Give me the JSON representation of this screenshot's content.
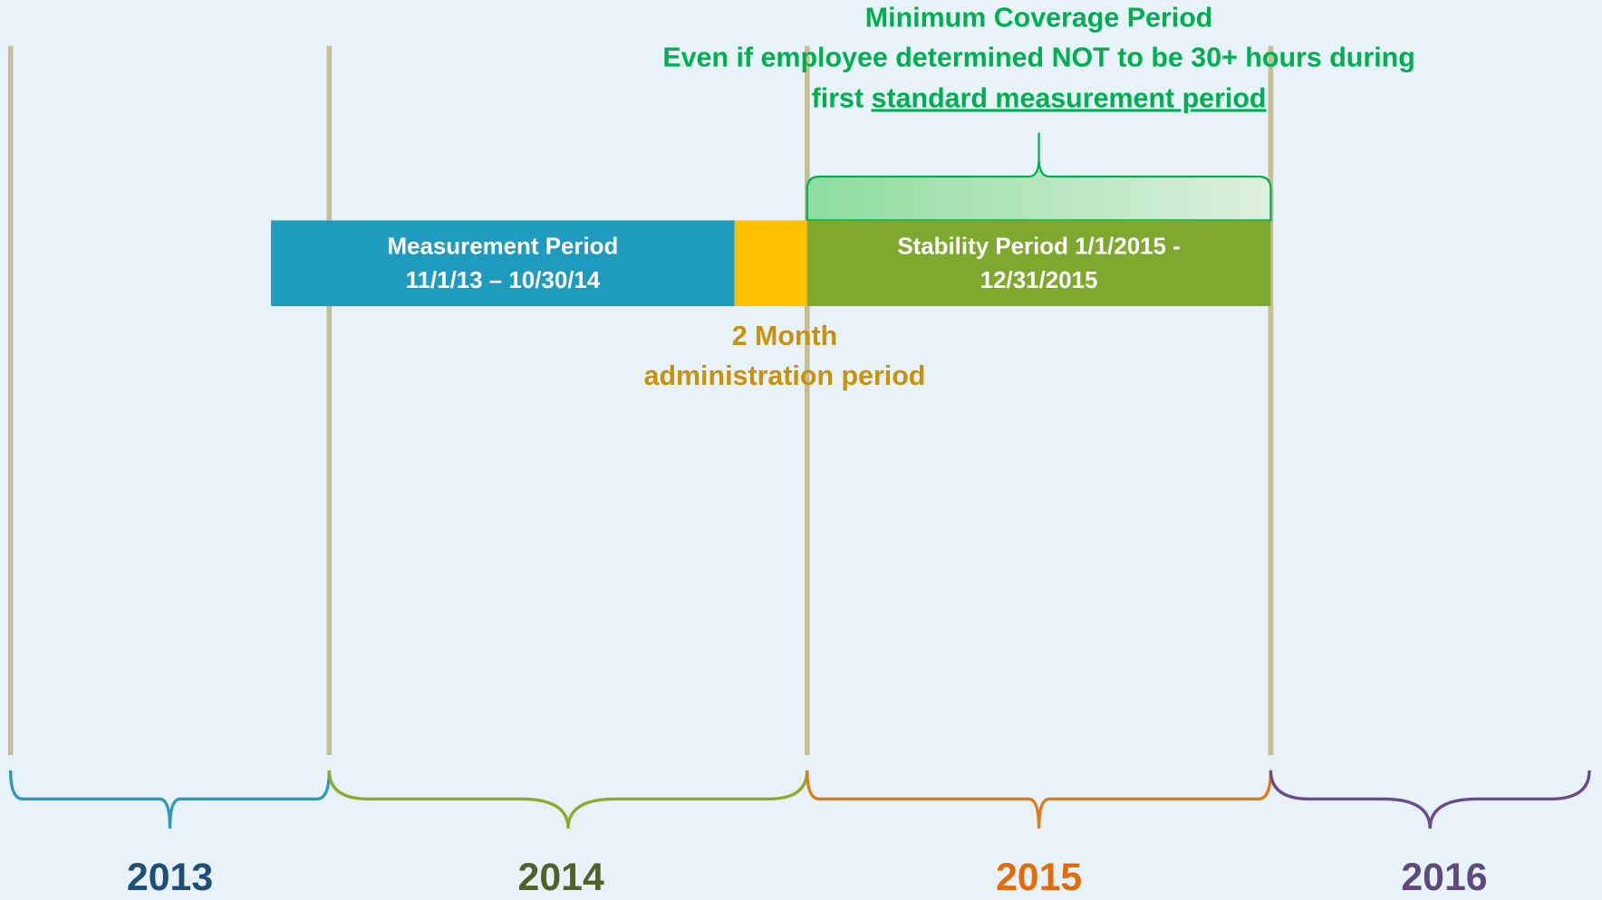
{
  "coverage": {
    "title": "Minimum Coverage Period",
    "line2": "Even if employee determined NOT to be 30+ hours during",
    "line3_prefix": "first",
    "line3_underlined": "standard measurement period"
  },
  "measurement": {
    "lines": [
      "Measurement Period",
      "11/1/13 – 10/30/14"
    ]
  },
  "stability": {
    "lines": [
      "Stability Period 1/1/2015 -",
      "12/31/2015"
    ]
  },
  "administration": {
    "lines": [
      "2 Month",
      "administration period"
    ]
  },
  "years": [
    "2013",
    "2014",
    "2015",
    "2016"
  ]
}
